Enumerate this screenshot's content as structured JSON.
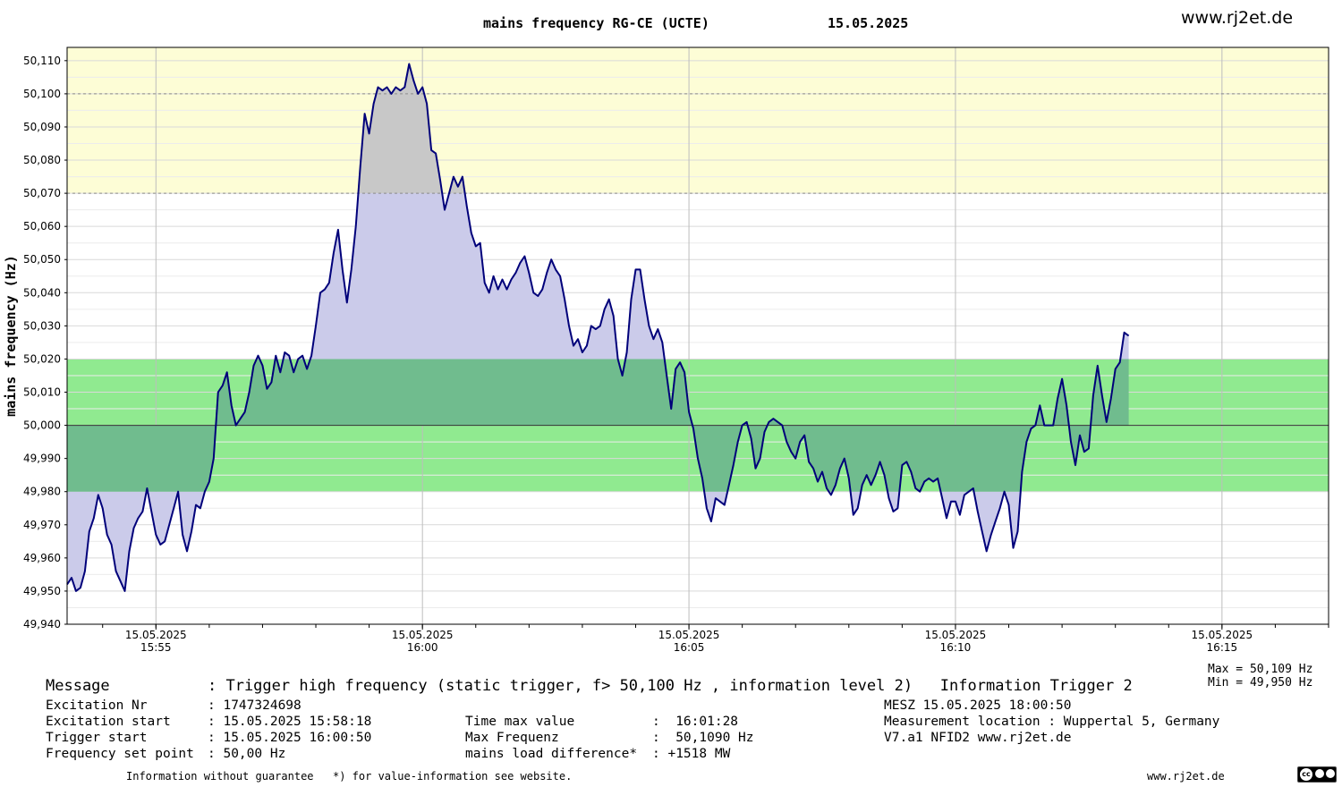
{
  "header": {
    "title": "mains frequency RG-CE (UCTE)",
    "date": "15.05.2025",
    "site": "www.rj2et.de"
  },
  "colors": {
    "yellow_band": "#fdfdd6",
    "green_band": "#90ea90",
    "fill_band": "#cbcbea",
    "fill_overlap": "#70bc8e",
    "fill_high": "#c8c8c8",
    "line": "#00007a"
  },
  "chart_data": {
    "type": "line",
    "title": "mains frequency RG-CE (UCTE)",
    "ylabel": "mains frequency (Hz)",
    "xlabel": "",
    "ylim": [
      49.94,
      50.114
    ],
    "xlim": [
      "15:53:20",
      "16:17:00"
    ],
    "grid": true,
    "reference_line": 50.0,
    "bands": [
      {
        "from": 49.98,
        "to": 50.02,
        "color": "green"
      },
      {
        "from": 50.07,
        "to": 50.114,
        "color": "yellow"
      }
    ],
    "dashed_lines": [
      50.07,
      50.1
    ],
    "yticks": [
      "50,110",
      "50,100",
      "50,090",
      "50,080",
      "50,070",
      "50,060",
      "50,050",
      "50,040",
      "50,030",
      "50,020",
      "50,010",
      "50,000",
      "49,990",
      "49,980",
      "49,970",
      "49,960",
      "49,950",
      "49,940"
    ],
    "xticks": [
      {
        "date": "15.05.2025",
        "time": "15:55"
      },
      {
        "date": "15.05.2025",
        "time": "16:00"
      },
      {
        "date": "15.05.2025",
        "time": "16:05"
      },
      {
        "date": "15.05.2025",
        "time": "16:10"
      },
      {
        "date": "15.05.2025",
        "time": "16:15"
      }
    ],
    "series": [
      {
        "x_start": "15:53:20",
        "step_seconds": 5,
        "values": [
          49.952,
          49.954,
          49.95,
          49.951,
          49.956,
          49.968,
          49.972,
          49.979,
          49.975,
          49.967,
          49.964,
          49.956,
          49.953,
          49.95,
          49.962,
          49.969,
          49.972,
          49.974,
          49.981,
          49.974,
          49.967,
          49.964,
          49.965,
          49.97,
          49.975,
          49.98,
          49.967,
          49.962,
          49.968,
          49.976,
          49.975,
          49.98,
          49.983,
          49.99,
          50.01,
          50.012,
          50.016,
          50.006,
          50.0,
          50.002,
          50.004,
          50.01,
          50.018,
          50.021,
          50.018,
          50.011,
          50.013,
          50.021,
          50.016,
          50.022,
          50.021,
          50.016,
          50.02,
          50.021,
          50.017,
          50.021,
          50.03,
          50.04,
          50.041,
          50.043,
          50.052,
          50.059,
          50.047,
          50.037,
          50.047,
          50.06,
          50.078,
          50.094,
          50.088,
          50.097,
          50.102,
          50.101,
          50.102,
          50.1,
          50.102,
          50.101,
          50.102,
          50.109,
          50.104,
          50.1,
          50.102,
          50.097,
          50.083,
          50.082,
          50.074,
          50.065,
          50.07,
          50.075,
          50.072,
          50.075,
          50.066,
          50.058,
          50.054,
          50.055,
          50.043,
          50.04,
          50.045,
          50.041,
          50.044,
          50.041,
          50.044,
          50.046,
          50.049,
          50.051,
          50.046,
          50.04,
          50.039,
          50.041,
          50.046,
          50.05,
          50.047,
          50.045,
          50.038,
          50.03,
          50.024,
          50.026,
          50.022,
          50.024,
          50.03,
          50.029,
          50.03,
          50.035,
          50.038,
          50.033,
          50.02,
          50.015,
          50.022,
          50.038,
          50.047,
          50.047,
          50.038,
          50.03,
          50.026,
          50.029,
          50.025,
          50.015,
          50.005,
          50.017,
          50.019,
          50.016,
          50.004,
          49.999,
          49.99,
          49.984,
          49.975,
          49.971,
          49.978,
          49.977,
          49.976,
          49.982,
          49.988,
          49.995,
          50.0,
          50.001,
          49.996,
          49.987,
          49.99,
          49.998,
          50.001,
          50.002,
          50.001,
          50.0,
          49.995,
          49.992,
          49.99,
          49.995,
          49.997,
          49.989,
          49.987,
          49.983,
          49.986,
          49.981,
          49.979,
          49.982,
          49.987,
          49.99,
          49.984,
          49.973,
          49.975,
          49.982,
          49.985,
          49.982,
          49.985,
          49.989,
          49.985,
          49.978,
          49.974,
          49.975,
          49.988,
          49.989,
          49.986,
          49.981,
          49.98,
          49.983,
          49.984,
          49.983,
          49.984,
          49.978,
          49.972,
          49.977,
          49.977,
          49.973,
          49.979,
          49.98,
          49.981,
          49.974,
          49.968,
          49.962,
          49.967,
          49.971,
          49.975,
          49.98,
          49.976,
          49.963,
          49.968,
          49.986,
          49.995,
          49.999,
          50.0,
          50.006,
          50.0,
          50.0,
          50.0,
          50.008,
          50.014,
          50.006,
          49.995,
          49.988,
          49.997,
          49.992,
          49.993,
          50.009,
          50.018,
          50.009,
          50.001,
          50.008,
          50.017,
          50.019,
          50.028,
          50.027
        ]
      }
    ],
    "max_label": "Max = 50,109 Hz",
    "min_label": "Min = 49,950 Hz"
  },
  "info": {
    "message_label": "Message",
    "message_value": ": Trigger high frequency (static trigger, f> 50,100 Hz , information level 2)   Information Trigger 2",
    "excitation_nr_label": "Excitation Nr",
    "excitation_nr_value": ": 1747324698",
    "excitation_start_label": "Excitation start",
    "excitation_start_value": ": 15.05.2025 15:58:18",
    "trigger_start_label": "Trigger start",
    "trigger_start_value": ": 15.05.2025 16:00:50",
    "set_point_label": "Frequency set point",
    "set_point_value": ": 50,00 Hz",
    "time_max_label": "Time max value",
    "time_max_value": ":  16:01:28",
    "max_freq_label": "Max Frequenz",
    "max_freq_value": ":  50,1090 Hz",
    "load_diff_label": "mains load difference*",
    "load_diff_value": ": +1518 MW",
    "mesz": "MESZ 15.05.2025 18:00:50",
    "location": "Measurement location : Wuppertal 5, Germany",
    "version": "V7.a1 NFID2 www.rj2et.de"
  },
  "footer": {
    "guarantee": "Information without guarantee",
    "note": "*) for value-information see website.",
    "site": "www.rj2et.de",
    "license_icon": "cc-by-sa-icon"
  }
}
